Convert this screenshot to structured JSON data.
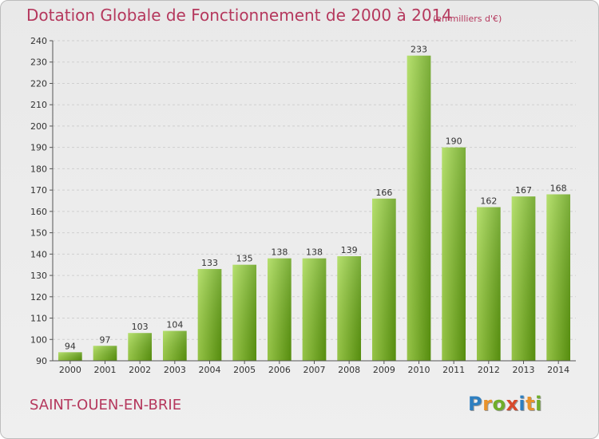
{
  "title": "Dotation Globale de Fonctionnement de 2000 à 2014",
  "unit_note": "(en milliers d'€)",
  "commune": "SAINT-OUEN-EN-BRIE",
  "logo": {
    "text": "Proxiti",
    "letter_colors": [
      "#2e7fc0",
      "#e8922b",
      "#6fae2a",
      "#d84a2b",
      "#2e7fc0",
      "#e8922b",
      "#6fae2a"
    ]
  },
  "colors": {
    "text_accent": "#b5385d",
    "bar_light": "#a6d94f",
    "bar_dark": "#5f9c10"
  },
  "chart_data": {
    "type": "bar",
    "categories": [
      "2000",
      "2001",
      "2002",
      "2003",
      "2004",
      "2005",
      "2006",
      "2007",
      "2008",
      "2009",
      "2010",
      "2011",
      "2012",
      "2013",
      "2014"
    ],
    "values": [
      94,
      97,
      103,
      104,
      133,
      135,
      138,
      138,
      139,
      166,
      233,
      190,
      162,
      167,
      168
    ],
    "yticks": [
      90,
      100,
      110,
      120,
      130,
      140,
      150,
      160,
      170,
      180,
      190,
      200,
      210,
      220,
      230,
      240
    ],
    "ylim": [
      90,
      240
    ],
    "grid": true,
    "legend": "none"
  }
}
